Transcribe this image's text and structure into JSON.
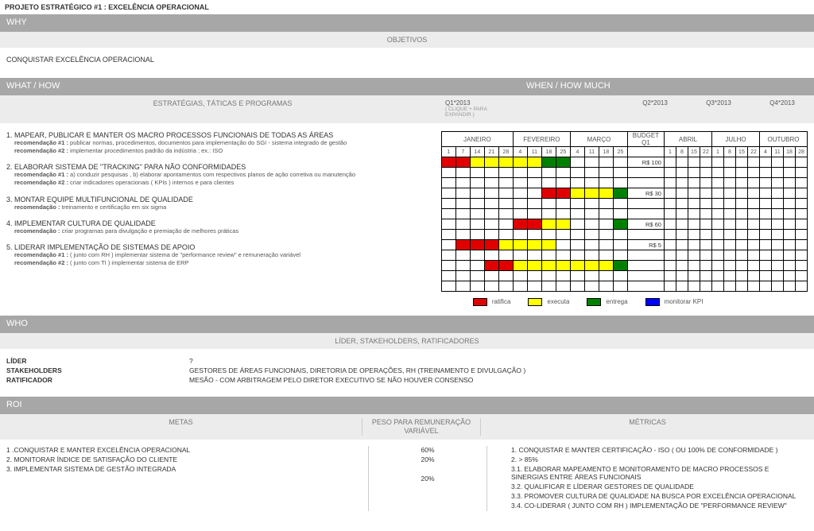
{
  "page_title": "PROJETO ESTRATÉGICO #1 : EXCELÊNCIA OPERACIONAL",
  "sections": {
    "why": {
      "title": "WHY",
      "subtitle": "OBJETIVOS",
      "body": "CONQUISTAR EXCELÊNCIA OPERACIONAL"
    },
    "whathow": {
      "left_title": "WHAT / HOW",
      "right_title": "WHEN / HOW MUCH",
      "sub_left": "ESTRATÉGIAS, TÁTICAS E PROGRAMAS",
      "quarters": {
        "q1": "Q1*2013",
        "q1_sub": "( CLIQUE + PARA EXPANDIR )",
        "q2": "Q2*2013",
        "q3": "Q3*2013",
        "q4": "Q4*2013"
      }
    },
    "who": {
      "title": "WHO",
      "subtitle": "LÍDER, STAKEHOLDERS, RATIFICADORES",
      "rows": [
        {
          "label": "LÍDER",
          "value": "?"
        },
        {
          "label": "STAKEHOLDERS",
          "value": "GESTORES DE ÁREAS FUNCIONAIS, DIRETORIA DE OPERAÇÕES, RH (TREINAMENTO E DIVULGAÇÃO )"
        },
        {
          "label": "RATIFICADOR",
          "value": "MESÃO - COM ARBITRAGEM PELO DIRETOR EXECUTIVO SE NÃO HOUVER CONSENSO"
        }
      ]
    },
    "roi": {
      "title": "ROI",
      "col_metas": "METAS",
      "col_peso": "PESO PARA REMUNERAÇÃO VARIÁVEL",
      "col_metricas": "MÉTRICAS",
      "metas": [
        "1 .CONQUISTAR E MANTER  EXCELÊNCIA OPERACIONAL",
        "2. MONITORAR ÍNDICE DE SATISFAÇÃO DO CLIENTE",
        "3. IMPLEMENTAR SISTEMA DE GESTÃO INTEGRADA"
      ],
      "pesos": [
        "60%",
        "20%",
        "",
        "20%"
      ],
      "metricas": [
        "1. CONQUISTAR E MANTER CERTIFICAÇÃO - ISO ( OU 100% DE CONFORMIDADE )",
        "2. > 85%",
        "3.1. ELABORAR MAPEAMENTO E MONITORAMENTO DE MACRO PROCESSOS E SINERGIAS ENTRE ÁREAS FUNCIONAIS",
        "3.2. QUALIFICAR E LÍDERAR GESTORES DE QUALIDADE",
        "3.3. PROMOVER CULTURA DE QUALIDADE NA BUSCA POR EXCELÊNCIA OPERACIONAL",
        "3.4. CO-LIDERAR ( JUNTO COM RH ) IMPLEMENTAÇÃO DE \"PERFORMANCE REVIEW\""
      ]
    }
  },
  "strategies": [
    {
      "title": "1. MAPEAR, PUBLICAR E MANTER OS MACRO PROCESSOS FUNCIONAIS DE TODAS AS ÁREAS",
      "recs": [
        "<b>recomendação #1 :</b> publicar normas, procedimentos, documentos para implementação do SGI - sistema integrado de gestão",
        "<b>recomendação #2 :</b> implementar procedimentos padrão da indústria ; ex.: ISO"
      ]
    },
    {
      "title": "2. ELABORAR SISTEMA DE \"TRACKING\" PARA NÃO CONFORMIDADES",
      "recs": [
        "<b>recomendação #1 :</b> a) conduzir pesquisas , b) elaborar apontamentos com respectivos planos de ação corretiva ou manutenção",
        "<b>recomendação #2 :</b> criar indicadores operacionais ( KPIs ) internos e para clientes"
      ]
    },
    {
      "title": "3. MONTAR EQUIPE MULTIFUNCIONAL DE QUALIDADE",
      "recs": [
        "<b>recomendação :</b> treinamento e certificação em six sigma"
      ]
    },
    {
      "title": "4. IMPLEMENTAR CULTURA DE QUALIDADE",
      "recs": [
        "<b>recomendação :</b> criar programas para divulgação e premiação de melhores práticas"
      ]
    },
    {
      "title": "5. LIDERAR IMPLEMENTAÇÃO DE SISTEMAS DE APOIO",
      "recs": [
        "<b>recomendação #1 :</b> ( junto com RH ) implementar sistema de \"performance review\" e remuneração variável",
        "<b>recomendação #2 :</b> ( junto com TI ) implementar sistema de ERP"
      ]
    }
  ],
  "gantt": {
    "months": [
      "JANEIRO",
      "FEVEREIRO",
      "MARÇO",
      "BUDGET Q1",
      "ABRIL",
      "JULHO",
      "OUTUBRO"
    ],
    "weeks": [
      [
        "1",
        "7",
        "14",
        "21",
        "28"
      ],
      [
        "4",
        "11",
        "18",
        "25"
      ],
      [
        "4",
        "11",
        "18",
        "25"
      ],
      [
        ""
      ],
      [
        "1",
        "8",
        "15",
        "22"
      ],
      [
        "1",
        "8",
        "15",
        "22"
      ],
      [
        "4",
        "11",
        "18",
        "28"
      ]
    ],
    "colors": {
      "r": "#e10000",
      "y": "#ffff00",
      "g": "#008000",
      "b": "#0000ff"
    },
    "rows": [
      {
        "cells": [
          "r",
          "r",
          "y",
          "y",
          "y",
          "y",
          "y",
          "g",
          "g",
          "",
          "",
          "",
          "",
          ""
        ],
        "budget": "R$        100"
      },
      {
        "cells": [
          "",
          "",
          "",
          "",
          "",
          "",
          "",
          "",
          "",
          "",
          "",
          "",
          "",
          ""
        ],
        "budget": ""
      },
      {
        "cells": [
          "",
          "",
          "",
          "",
          "",
          "",
          "",
          "",
          "",
          "",
          "",
          "",
          "",
          ""
        ],
        "budget": ""
      },
      {
        "cells": [
          "",
          "",
          "",
          "",
          "",
          "",
          "",
          "r",
          "r",
          "y",
          "y",
          "y",
          "g",
          ""
        ],
        "budget": "R$          30"
      },
      {
        "cells": [
          "",
          "",
          "",
          "",
          "",
          "",
          "",
          "",
          "",
          "",
          "",
          "",
          "",
          ""
        ],
        "budget": ""
      },
      {
        "cells": [
          "",
          "",
          "",
          "",
          "",
          "",
          "",
          "",
          "",
          "",
          "",
          "",
          "",
          ""
        ],
        "budget": ""
      },
      {
        "cells": [
          "",
          "",
          "",
          "",
          "",
          "r",
          "r",
          "y",
          "y",
          "",
          "",
          "",
          "g",
          ""
        ],
        "budget": "R$          60"
      },
      {
        "cells": [
          "",
          "",
          "",
          "",
          "",
          "",
          "",
          "",
          "",
          "",
          "",
          "",
          "",
          ""
        ],
        "budget": ""
      },
      {
        "cells": [
          "",
          "r",
          "r",
          "r",
          "y",
          "y",
          "y",
          "y",
          "",
          "",
          "",
          "",
          "",
          ""
        ],
        "budget": "R$            5"
      },
      {
        "cells": [
          "",
          "",
          "",
          "",
          "",
          "",
          "",
          "",
          "",
          "",
          "",
          "",
          "",
          ""
        ],
        "budget": ""
      },
      {
        "cells": [
          "",
          "",
          "",
          "r",
          "r",
          "y",
          "y",
          "y",
          "y",
          "y",
          "y",
          "y",
          "g",
          ""
        ],
        "budget": ""
      },
      {
        "cells": [
          "",
          "",
          "",
          "",
          "",
          "",
          "",
          "",
          "",
          "",
          "",
          "",
          "",
          ""
        ],
        "budget": ""
      },
      {
        "cells": [
          "",
          "",
          "",
          "",
          "",
          "",
          "",
          "",
          "",
          "",
          "",
          "",
          "",
          ""
        ],
        "budget": ""
      }
    ]
  },
  "legend": [
    {
      "color": "red",
      "label": "ratifica"
    },
    {
      "color": "yellow",
      "label": "executa"
    },
    {
      "color": "green",
      "label": "entrega"
    },
    {
      "color": "blue",
      "label": "monitorar KPI"
    }
  ]
}
